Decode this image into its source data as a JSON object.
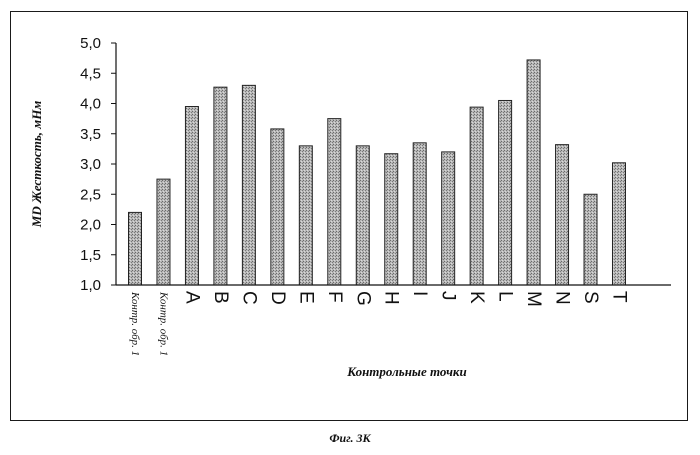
{
  "chart_data": {
    "type": "bar",
    "categories": [
      "Контр. обр. 1",
      "Контр. обр. 1",
      "A",
      "B",
      "C",
      "D",
      "E",
      "F",
      "G",
      "H",
      "I",
      "J",
      "K",
      "L",
      "M",
      "N",
      "S",
      "T"
    ],
    "values": [
      2.2,
      2.75,
      3.95,
      4.27,
      4.3,
      3.58,
      3.3,
      3.75,
      3.3,
      3.17,
      3.35,
      3.2,
      3.94,
      4.05,
      4.72,
      3.32,
      2.5,
      3.02
    ],
    "xlabel": "Контрольные точки",
    "ylabel": "MD Жесткость, мНм",
    "ylim": [
      1.0,
      5.0
    ],
    "yticks": [
      "1,0",
      "1,5",
      "2,0",
      "2,5",
      "3,0",
      "3,5",
      "4,0",
      "4,5",
      "5,0"
    ],
    "grid": false,
    "bar_color": "#a8a8a8"
  },
  "caption": "Фиг. 3К"
}
